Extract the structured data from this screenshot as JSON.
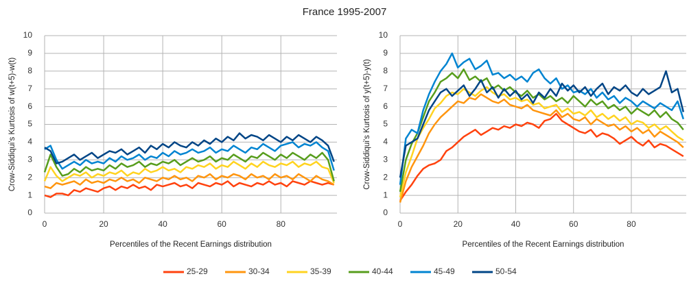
{
  "title": "France 1995-2007",
  "chart_data": [
    {
      "type": "line",
      "xlabel": "Percentiles of the Recent Earnings distribution",
      "ylabel": "Crow-Siddiqui's Kurtosis of w(t+5)-w(t)",
      "xlim": [
        0,
        99
      ],
      "ylim": [
        0,
        10
      ],
      "xticks": [
        0,
        20,
        40,
        60,
        80
      ],
      "yticks": [
        0,
        1,
        2,
        3,
        4,
        5,
        6,
        7,
        8,
        9,
        10
      ],
      "grid": true,
      "legend": "bottom",
      "x": [
        0,
        2,
        4,
        6,
        8,
        10,
        12,
        14,
        16,
        18,
        20,
        22,
        24,
        26,
        28,
        30,
        32,
        34,
        36,
        38,
        40,
        42,
        44,
        46,
        48,
        50,
        52,
        54,
        56,
        58,
        60,
        62,
        64,
        66,
        68,
        70,
        72,
        74,
        76,
        78,
        80,
        82,
        84,
        86,
        88,
        90,
        92,
        94,
        96,
        98
      ],
      "series": [
        {
          "name": "25-29",
          "color": "#ff420e",
          "values": [
            1.0,
            0.9,
            1.1,
            1.1,
            1.0,
            1.3,
            1.2,
            1.4,
            1.3,
            1.2,
            1.4,
            1.5,
            1.3,
            1.5,
            1.4,
            1.6,
            1.4,
            1.5,
            1.3,
            1.6,
            1.5,
            1.6,
            1.7,
            1.5,
            1.6,
            1.4,
            1.7,
            1.6,
            1.5,
            1.7,
            1.6,
            1.8,
            1.5,
            1.7,
            1.6,
            1.5,
            1.7,
            1.6,
            1.8,
            1.6,
            1.7,
            1.5,
            1.8,
            1.7,
            1.6,
            1.8,
            1.7,
            1.6,
            1.7,
            1.6
          ]
        },
        {
          "name": "30-34",
          "color": "#ff950e",
          "values": [
            1.5,
            1.4,
            1.7,
            1.6,
            1.7,
            1.8,
            1.6,
            1.9,
            1.7,
            1.8,
            1.7,
            1.9,
            1.8,
            2.0,
            1.8,
            1.9,
            1.7,
            2.0,
            1.9,
            1.8,
            2.0,
            1.9,
            2.1,
            1.9,
            2.0,
            1.8,
            2.1,
            2.0,
            2.2,
            1.9,
            2.1,
            2.0,
            2.2,
            2.1,
            1.9,
            2.2,
            2.0,
            2.1,
            1.9,
            2.2,
            2.0,
            2.1,
            1.9,
            2.2,
            2.0,
            1.8,
            2.1,
            1.9,
            1.8,
            1.6
          ]
        },
        {
          "name": "35-39",
          "color": "#ffd320",
          "values": [
            1.8,
            2.6,
            2.1,
            1.8,
            2.0,
            2.2,
            2.1,
            2.3,
            2.0,
            2.2,
            2.1,
            2.3,
            2.2,
            2.4,
            2.1,
            2.3,
            2.2,
            2.5,
            2.3,
            2.4,
            2.6,
            2.4,
            2.5,
            2.3,
            2.6,
            2.5,
            2.7,
            2.6,
            2.8,
            2.5,
            2.7,
            2.6,
            2.9,
            2.7,
            2.5,
            2.8,
            2.6,
            2.9,
            2.7,
            2.6,
            2.8,
            2.7,
            2.9,
            2.6,
            2.8,
            2.7,
            2.9,
            2.6,
            2.5,
            1.7
          ]
        },
        {
          "name": "40-44",
          "color": "#579d1c",
          "values": [
            2.3,
            3.3,
            2.6,
            2.1,
            2.2,
            2.5,
            2.3,
            2.6,
            2.4,
            2.5,
            2.4,
            2.7,
            2.5,
            2.8,
            2.6,
            2.7,
            2.9,
            2.6,
            2.8,
            2.7,
            2.9,
            2.8,
            3.0,
            2.7,
            2.9,
            3.1,
            2.9,
            3.0,
            3.2,
            2.9,
            3.1,
            3.0,
            3.3,
            3.1,
            2.9,
            3.2,
            3.1,
            3.4,
            3.2,
            3.0,
            3.3,
            3.1,
            3.4,
            3.2,
            3.0,
            3.3,
            3.1,
            3.4,
            3.0,
            1.8
          ]
        },
        {
          "name": "45-49",
          "color": "#0084d1",
          "values": [
            3.6,
            3.8,
            3.0,
            2.5,
            2.7,
            2.9,
            2.7,
            3.0,
            2.8,
            2.9,
            2.8,
            3.1,
            2.9,
            3.2,
            3.0,
            3.1,
            3.3,
            3.0,
            3.2,
            3.1,
            3.4,
            3.2,
            3.5,
            3.3,
            3.4,
            3.6,
            3.4,
            3.5,
            3.7,
            3.4,
            3.6,
            3.5,
            3.8,
            3.6,
            3.4,
            3.7,
            3.6,
            3.9,
            3.7,
            3.5,
            3.8,
            3.9,
            4.0,
            3.7,
            3.9,
            3.8,
            4.0,
            3.7,
            3.5,
            2.4
          ]
        },
        {
          "name": "50-54",
          "color": "#004586",
          "values": [
            3.7,
            3.5,
            2.8,
            2.9,
            3.1,
            3.3,
            3.0,
            3.2,
            3.4,
            3.1,
            3.3,
            3.5,
            3.4,
            3.6,
            3.3,
            3.5,
            3.7,
            3.4,
            3.8,
            3.6,
            3.9,
            3.7,
            4.0,
            3.8,
            3.7,
            4.0,
            3.8,
            4.1,
            3.9,
            4.2,
            4.0,
            4.3,
            4.1,
            4.5,
            4.2,
            4.4,
            4.3,
            4.1,
            4.4,
            4.2,
            4.0,
            4.3,
            4.1,
            4.4,
            4.2,
            4.0,
            4.3,
            4.1,
            3.8,
            2.9
          ]
        }
      ]
    },
    {
      "type": "line",
      "xlabel": "Percentiles of the Recent Earnings distribution",
      "ylabel": "Crow-Siddiqui's Kurtosis of y(t+5)-y(t)",
      "xlim": [
        0,
        99
      ],
      "ylim": [
        0,
        10
      ],
      "xticks": [
        0,
        20,
        40,
        60,
        80
      ],
      "yticks": [
        0,
        1,
        2,
        3,
        4,
        5,
        6,
        7,
        8,
        9,
        10
      ],
      "grid": true,
      "x": [
        0,
        2,
        4,
        6,
        8,
        10,
        12,
        14,
        16,
        18,
        20,
        22,
        24,
        26,
        28,
        30,
        32,
        34,
        36,
        38,
        40,
        42,
        44,
        46,
        48,
        50,
        52,
        54,
        56,
        58,
        60,
        62,
        64,
        66,
        68,
        70,
        72,
        74,
        76,
        78,
        80,
        82,
        84,
        86,
        88,
        90,
        92,
        94,
        96,
        98
      ],
      "series": [
        {
          "name": "25-29",
          "color": "#ff420e",
          "values": [
            0.7,
            1.2,
            1.6,
            2.1,
            2.5,
            2.7,
            2.8,
            3.0,
            3.5,
            3.7,
            4.0,
            4.3,
            4.5,
            4.7,
            4.4,
            4.6,
            4.8,
            4.7,
            4.9,
            4.8,
            5.0,
            4.9,
            5.1,
            5.0,
            4.8,
            5.2,
            5.3,
            5.6,
            5.2,
            5.0,
            4.8,
            4.6,
            4.5,
            4.7,
            4.3,
            4.5,
            4.4,
            4.2,
            3.9,
            4.1,
            4.3,
            4.0,
            3.8,
            4.1,
            3.7,
            3.9,
            3.8,
            3.6,
            3.4,
            3.2
          ]
        },
        {
          "name": "30-34",
          "color": "#ff950e",
          "values": [
            0.6,
            1.8,
            2.6,
            3.2,
            3.8,
            4.5,
            5.0,
            5.4,
            5.7,
            6.0,
            6.3,
            6.2,
            6.5,
            6.4,
            6.7,
            6.5,
            6.3,
            6.2,
            6.4,
            6.1,
            6.0,
            5.9,
            6.1,
            5.8,
            5.7,
            5.6,
            5.5,
            5.8,
            5.4,
            5.6,
            5.3,
            5.2,
            5.4,
            5.0,
            5.3,
            5.1,
            4.9,
            5.0,
            4.7,
            4.9,
            4.6,
            4.8,
            4.5,
            4.7,
            4.3,
            4.6,
            4.4,
            4.2,
            4.0,
            3.7
          ]
        },
        {
          "name": "35-39",
          "color": "#ffd320",
          "values": [
            0.9,
            2.3,
            3.2,
            4.2,
            4.8,
            5.3,
            5.9,
            6.2,
            6.6,
            6.8,
            6.7,
            7.0,
            6.8,
            6.6,
            6.9,
            7.1,
            6.8,
            6.6,
            6.7,
            6.4,
            6.5,
            6.3,
            6.4,
            6.1,
            6.2,
            5.9,
            6.0,
            6.1,
            5.7,
            5.9,
            5.6,
            5.7,
            5.5,
            5.8,
            5.4,
            5.6,
            5.3,
            5.5,
            5.2,
            5.4,
            5.0,
            5.2,
            5.1,
            4.8,
            5.0,
            4.7,
            4.9,
            4.6,
            4.3,
            4.1
          ]
        },
        {
          "name": "40-44",
          "color": "#579d1c",
          "values": [
            1.2,
            3.0,
            3.9,
            4.5,
            5.4,
            6.3,
            6.8,
            7.4,
            7.6,
            7.9,
            7.6,
            8.1,
            7.5,
            7.7,
            7.4,
            7.6,
            7.0,
            7.2,
            6.9,
            7.1,
            6.8,
            6.6,
            6.9,
            6.5,
            6.7,
            6.4,
            6.6,
            6.3,
            6.5,
            6.2,
            6.6,
            6.3,
            6.0,
            6.4,
            6.1,
            6.3,
            5.9,
            6.1,
            5.8,
            6.0,
            5.6,
            5.9,
            5.7,
            5.5,
            5.8,
            5.4,
            5.7,
            5.3,
            5.1,
            4.7
          ]
        },
        {
          "name": "45-49",
          "color": "#0084d1",
          "values": [
            1.6,
            4.2,
            4.7,
            4.5,
            5.8,
            6.7,
            7.4,
            8.0,
            8.4,
            9.0,
            8.2,
            8.5,
            8.7,
            8.1,
            8.3,
            8.6,
            7.8,
            7.9,
            7.6,
            7.8,
            7.5,
            7.7,
            7.4,
            7.9,
            8.1,
            7.6,
            7.3,
            7.6,
            7.0,
            7.2,
            6.8,
            6.9,
            6.7,
            7.0,
            6.5,
            6.8,
            6.4,
            6.6,
            6.2,
            6.5,
            6.3,
            6.0,
            6.3,
            6.1,
            5.9,
            6.2,
            6.0,
            5.8,
            6.3,
            5.3
          ]
        },
        {
          "name": "50-54",
          "color": "#004586",
          "values": [
            2.0,
            3.8,
            4.0,
            4.2,
            5.0,
            5.8,
            6.3,
            6.8,
            7.0,
            6.6,
            6.9,
            7.2,
            6.6,
            7.0,
            7.5,
            6.8,
            7.1,
            6.5,
            7.0,
            6.6,
            6.9,
            6.4,
            6.7,
            6.2,
            6.8,
            6.5,
            7.0,
            6.6,
            7.3,
            6.9,
            7.2,
            6.8,
            7.1,
            6.6,
            7.0,
            7.3,
            6.7,
            7.1,
            6.9,
            7.2,
            6.8,
            6.6,
            7.0,
            6.7,
            6.9,
            7.1,
            8.0,
            6.8,
            7.0,
            5.7
          ]
        }
      ]
    }
  ]
}
